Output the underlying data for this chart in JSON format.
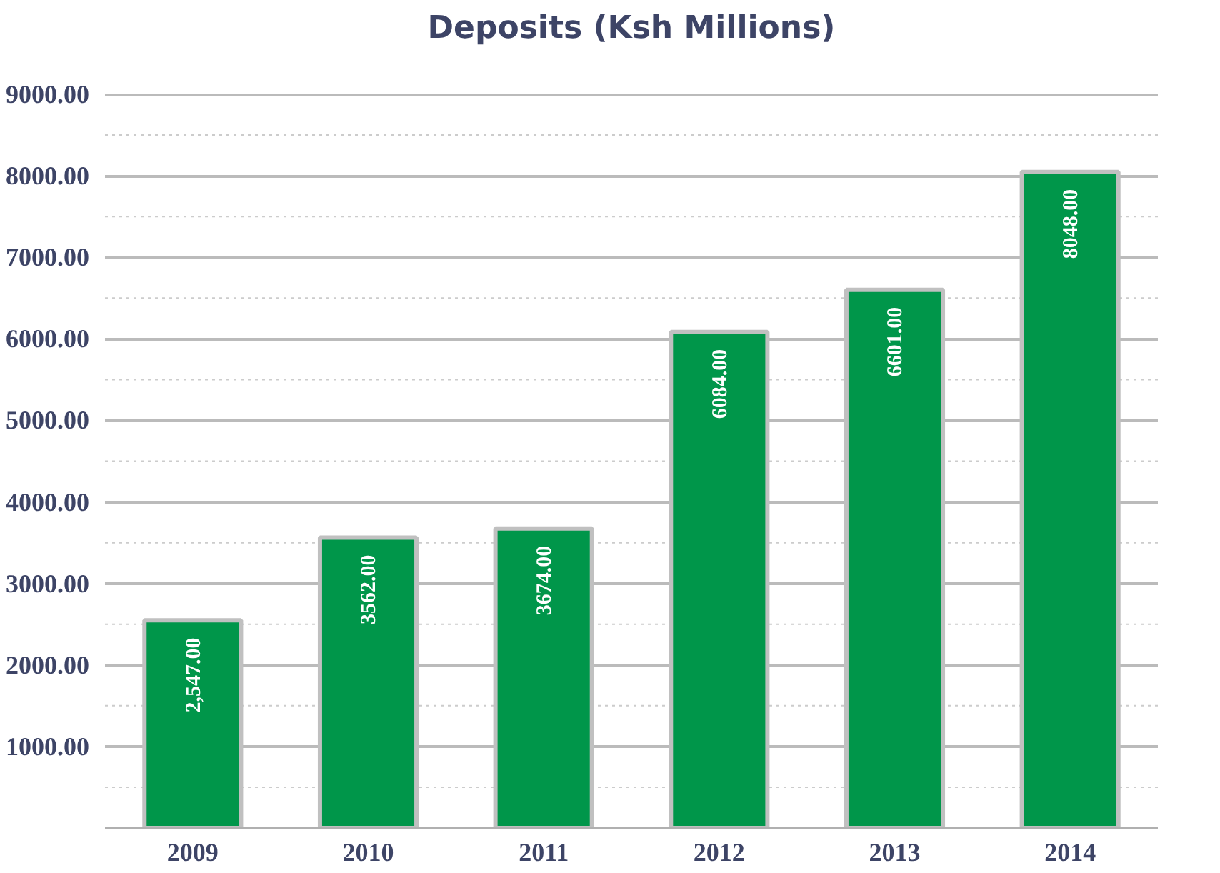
{
  "chart_data": {
    "type": "bar",
    "title": "Deposits (Ksh Millions)",
    "categories": [
      "2009",
      "2010",
      "2011",
      "2012",
      "2013",
      "2014"
    ],
    "values": [
      2547,
      3562,
      3674,
      6084,
      6601,
      8048
    ],
    "value_labels": [
      "2,547.00",
      "3562.00",
      "3674.00",
      "6084.00",
      "6601.00",
      "8048.00"
    ],
    "color": "#00964a",
    "ylim": [
      0,
      9500
    ],
    "yticks": [
      {
        "value": 500,
        "label": null
      },
      {
        "value": 1500,
        "label": null
      },
      {
        "value": 2500,
        "label": null
      },
      {
        "value": 3500,
        "label": null
      },
      {
        "value": 4500,
        "label": null
      },
      {
        "value": 5500,
        "label": null
      },
      {
        "value": 6500,
        "label": null
      },
      {
        "value": 7500,
        "label": null
      },
      {
        "value": 8500,
        "label": null
      },
      {
        "value": 9500,
        "label": null
      },
      {
        "value": 1000,
        "label": "1000.00"
      },
      {
        "value": 2000,
        "label": "2000.00"
      },
      {
        "value": 3000,
        "label": "3000.00"
      },
      {
        "value": 4000,
        "label": "4000.00"
      },
      {
        "value": 5000,
        "label": "5000.00"
      },
      {
        "value": 6000,
        "label": "6000.00"
      },
      {
        "value": 7000,
        "label": "7000.00"
      },
      {
        "value": 8000,
        "label": "8000.00"
      },
      {
        "value": 9000,
        "label": "9000.00"
      }
    ],
    "grid": "y"
  }
}
